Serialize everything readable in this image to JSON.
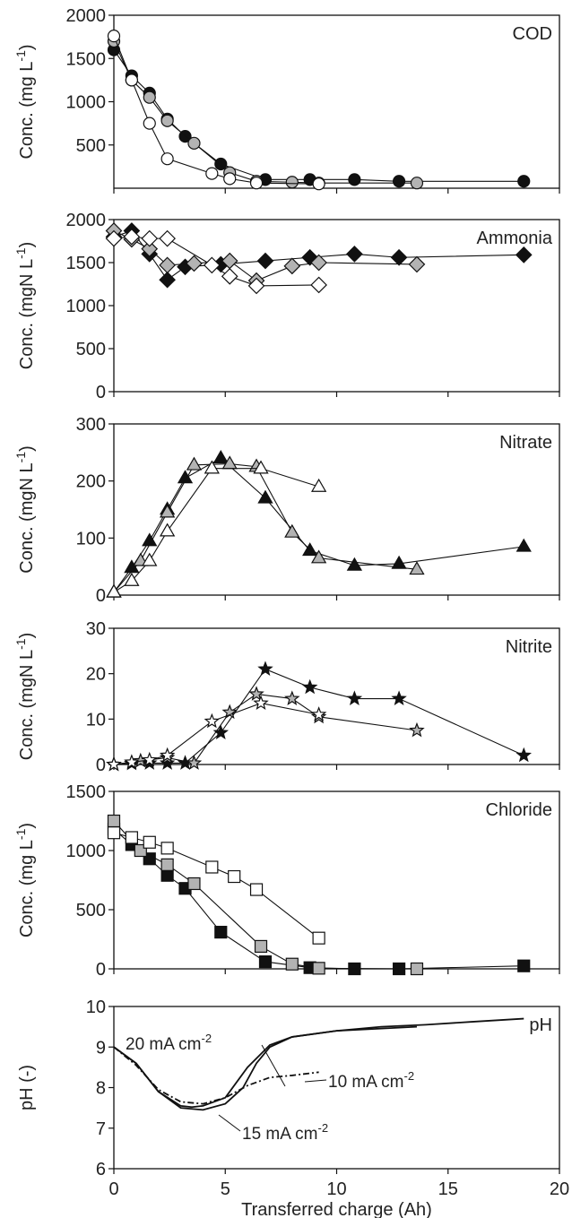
{
  "chart_data": [
    {
      "type": "line",
      "panel_label": "COD",
      "ylabel_main": "Conc. (mg L",
      "ylabel_exp": "-1",
      "ylabel_tail": ")",
      "xlim": [
        0,
        20
      ],
      "ylim": [
        0,
        2000
      ],
      "yticks": [
        500,
        1000,
        1500,
        2000
      ],
      "marker": "circle",
      "series": [
        {
          "fill": "#111111",
          "x": [
            0,
            0.8,
            1.6,
            2.4,
            3.2,
            4.8,
            6.8,
            8.8,
            10.8,
            12.8,
            18.4
          ],
          "y": [
            1600,
            1300,
            1100,
            800,
            600,
            280,
            100,
            100,
            100,
            80,
            80
          ]
        },
        {
          "fill": "#b3b3b3",
          "x": [
            0,
            0.8,
            1.6,
            2.4,
            3.6,
            5.2,
            6.4,
            8.0,
            9.2,
            13.6
          ],
          "y": [
            1700,
            1250,
            1050,
            780,
            520,
            180,
            80,
            70,
            60,
            60
          ]
        },
        {
          "fill": "#ffffff",
          "x": [
            0,
            0.8,
            1.6,
            2.4,
            4.4,
            5.2,
            6.4,
            9.2
          ],
          "y": [
            1760,
            1250,
            750,
            340,
            170,
            110,
            60,
            50
          ]
        }
      ]
    },
    {
      "type": "line",
      "panel_label": "Ammonia",
      "ylabel_main": "Conc. (mgN L",
      "ylabel_exp": "-1",
      "ylabel_tail": ")",
      "xlim": [
        0,
        20
      ],
      "ylim": [
        0,
        2000
      ],
      "yticks": [
        0,
        500,
        1000,
        1500,
        2000
      ],
      "marker": "diamond",
      "series": [
        {
          "fill": "#111111",
          "x": [
            0,
            0.8,
            1.6,
            2.4,
            3.2,
            4.8,
            6.8,
            8.8,
            10.8,
            12.8,
            18.4
          ],
          "y": [
            1800,
            1870,
            1600,
            1300,
            1450,
            1480,
            1520,
            1560,
            1600,
            1560,
            1590
          ]
        },
        {
          "fill": "#b3b3b3",
          "x": [
            0,
            0.8,
            1.6,
            2.4,
            3.6,
            5.2,
            6.4,
            8.0,
            9.2,
            13.6
          ],
          "y": [
            1870,
            1770,
            1660,
            1470,
            1490,
            1520,
            1290,
            1460,
            1500,
            1480
          ]
        },
        {
          "fill": "#ffffff",
          "x": [
            0,
            0.8,
            1.6,
            2.4,
            4.4,
            5.2,
            6.4,
            9.2
          ],
          "y": [
            1780,
            1800,
            1780,
            1780,
            1470,
            1340,
            1230,
            1240
          ]
        }
      ]
    },
    {
      "type": "line",
      "panel_label": "Nitrate",
      "ylabel_main": "Conc. (mgN L",
      "ylabel_exp": "-1",
      "ylabel_tail": ")",
      "xlim": [
        0,
        20
      ],
      "ylim": [
        0,
        300
      ],
      "yticks": [
        0,
        100,
        200,
        300
      ],
      "marker": "triangle",
      "series": [
        {
          "fill": "#111111",
          "x": [
            0,
            0.8,
            1.6,
            2.4,
            3.2,
            4.8,
            6.8,
            8.8,
            10.8,
            12.8,
            18.4
          ],
          "y": [
            5,
            48,
            95,
            150,
            205,
            240,
            170,
            78,
            52,
            55,
            85
          ]
        },
        {
          "fill": "#b3b3b3",
          "x": [
            0,
            1.2,
            2.4,
            3.6,
            5.2,
            6.4,
            8.0,
            9.2,
            13.6
          ],
          "y": [
            5,
            60,
            145,
            228,
            230,
            225,
            110,
            65,
            45
          ]
        },
        {
          "fill": "#ffffff",
          "x": [
            0,
            0.8,
            1.6,
            2.4,
            4.4,
            6.6,
            9.2
          ],
          "y": [
            5,
            25,
            60,
            112,
            222,
            222,
            190
          ]
        }
      ]
    },
    {
      "type": "line",
      "panel_label": "Nitrite",
      "ylabel_main": "Conc. (mgN L",
      "ylabel_exp": "-1",
      "ylabel_tail": ")",
      "xlim": [
        0,
        20
      ],
      "ylim": [
        0,
        30
      ],
      "yticks": [
        0,
        10,
        20,
        30
      ],
      "marker": "star",
      "series": [
        {
          "fill": "#111111",
          "x": [
            0,
            0.8,
            1.6,
            2.4,
            3.2,
            4.8,
            6.8,
            8.8,
            10.8,
            12.8,
            18.4
          ],
          "y": [
            0,
            0.2,
            0.3,
            0.3,
            0.3,
            7,
            21,
            17,
            14.5,
            14.5,
            2
          ]
        },
        {
          "fill": "#b3b3b3",
          "x": [
            0,
            1.2,
            2.4,
            3.6,
            5.2,
            6.4,
            8.0,
            9.2,
            13.6
          ],
          "y": [
            0,
            0.8,
            1.5,
            0.3,
            11.5,
            15.5,
            14.5,
            10.5,
            7.5
          ]
        },
        {
          "fill": "#ffffff",
          "x": [
            0,
            0.8,
            1.6,
            2.4,
            4.4,
            6.6,
            9.2
          ],
          "y": [
            0,
            0.5,
            1,
            2,
            9.5,
            13.5,
            11
          ]
        }
      ]
    },
    {
      "type": "line",
      "panel_label": "Chloride",
      "ylabel_main": "Conc. (mg L",
      "ylabel_exp": "-1",
      "ylabel_tail": ")",
      "xlim": [
        0,
        20
      ],
      "ylim": [
        0,
        1500
      ],
      "yticks": [
        0,
        500,
        1000,
        1500
      ],
      "marker": "square",
      "series": [
        {
          "fill": "#111111",
          "x": [
            0,
            0.8,
            1.6,
            2.4,
            3.2,
            4.8,
            6.8,
            8.8,
            10.8,
            12.8,
            18.4
          ],
          "y": [
            1180,
            1050,
            930,
            790,
            680,
            310,
            60,
            10,
            0,
            0,
            25
          ]
        },
        {
          "fill": "#b3b3b3",
          "x": [
            0,
            1.2,
            2.4,
            3.6,
            6.6,
            8.0,
            9.2,
            13.6
          ],
          "y": [
            1250,
            1000,
            880,
            720,
            190,
            40,
            5,
            0
          ]
        },
        {
          "fill": "#ffffff",
          "x": [
            0,
            0.8,
            1.6,
            2.4,
            4.4,
            5.4,
            6.4,
            9.2
          ],
          "y": [
            1150,
            1110,
            1070,
            1020,
            860,
            780,
            670,
            260
          ]
        }
      ]
    },
    {
      "type": "line",
      "panel_label": "pH",
      "ylabel_main": "pH (-)",
      "xlabel": "Transferred charge (Ah)",
      "xlim": [
        0,
        20
      ],
      "xticks": [
        0,
        5,
        10,
        15,
        20
      ],
      "ylim": [
        6,
        10
      ],
      "yticks": [
        6,
        7,
        8,
        9,
        10
      ],
      "series": [
        {
          "name": "20 mA cm",
          "name_exp": "-2",
          "style": "solid",
          "x": [
            0,
            1,
            2,
            3,
            3.5,
            4,
            5,
            6,
            7,
            8,
            10,
            12,
            14,
            16,
            18.4
          ],
          "y": [
            9.0,
            8.6,
            7.9,
            7.55,
            7.52,
            7.55,
            7.75,
            8.5,
            9.05,
            9.25,
            9.4,
            9.5,
            9.55,
            9.62,
            9.7
          ]
        },
        {
          "name": "10 mA cm",
          "name_exp": "-2",
          "style": "dashed",
          "x": [
            0,
            1,
            2,
            3,
            4,
            5,
            6,
            7,
            8,
            9.2
          ],
          "y": [
            9.0,
            8.55,
            7.95,
            7.65,
            7.6,
            7.75,
            8.05,
            8.25,
            8.3,
            8.38
          ]
        },
        {
          "name": "15 mA cm",
          "name_exp": "-2",
          "style": "solid",
          "x": [
            0,
            1,
            2,
            3,
            4,
            5,
            5.8,
            6.4,
            7,
            8,
            10,
            13.6
          ],
          "y": [
            9.0,
            8.6,
            7.9,
            7.5,
            7.45,
            7.6,
            8.0,
            8.6,
            9.0,
            9.25,
            9.4,
            9.5
          ]
        }
      ]
    }
  ]
}
